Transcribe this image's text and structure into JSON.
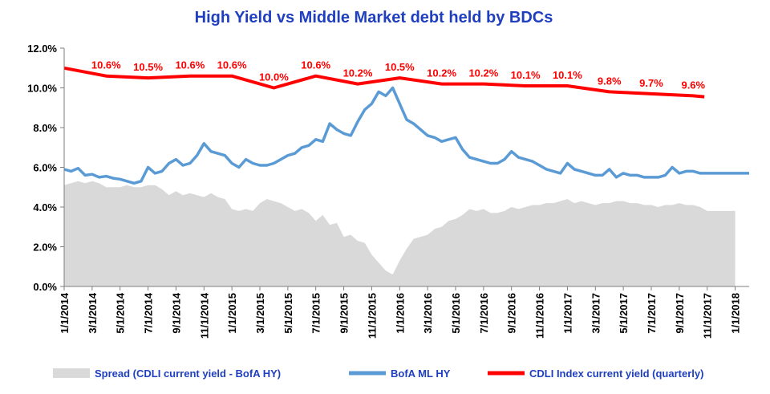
{
  "chart_data": {
    "type": "line",
    "title": "High Yield  vs  Middle Market debt held by BDCs",
    "xlabel": "",
    "ylabel": "",
    "ylim": [
      0,
      12
    ],
    "y_ticks": [
      "0.0%",
      "2.0%",
      "4.0%",
      "6.0%",
      "8.0%",
      "10.0%",
      "12.0%"
    ],
    "x_ticks": [
      "1/1/2014",
      "3/1/2014",
      "5/1/2014",
      "7/1/2014",
      "9/1/2014",
      "11/1/2014",
      "1/1/2015",
      "3/1/2015",
      "5/1/2015",
      "7/1/2015",
      "9/1/2015",
      "11/1/2015",
      "1/1/2016",
      "3/1/2016",
      "5/1/2016",
      "7/1/2016",
      "9/1/2016",
      "11/1/2016",
      "1/1/2017",
      "3/1/2017",
      "5/1/2017",
      "7/1/2017",
      "9/1/2017",
      "11/1/2017",
      "1/1/2018"
    ],
    "x_range_months": [
      0,
      49
    ],
    "grid": "none",
    "legend_position": "bottom",
    "colors": {
      "spread": "#d9d9d9",
      "hy": "#5b9bd5",
      "cdli": "#ff0000",
      "title": "#1f3fbf"
    },
    "series": [
      {
        "name": "Spread (CDLI current yield - BofA HY)",
        "type": "area",
        "x": [
          0,
          0.5,
          1,
          1.5,
          2,
          2.5,
          3,
          3.5,
          4,
          4.5,
          5,
          5.5,
          6,
          6.5,
          7,
          7.5,
          8,
          8.5,
          9,
          9.5,
          10,
          10.5,
          11,
          11.5,
          12,
          12.5,
          13,
          13.5,
          14,
          14.5,
          15,
          15.5,
          16,
          16.5,
          17,
          17.5,
          18,
          18.5,
          19,
          19.5,
          20,
          20.5,
          21,
          21.5,
          22,
          22.5,
          23,
          23.5,
          24,
          24.5,
          25,
          25.5,
          26,
          26.5,
          27,
          27.5,
          28,
          28.5,
          29,
          29.5,
          30,
          30.5,
          31,
          31.5,
          32,
          32.5,
          33,
          33.5,
          34,
          34.5,
          35,
          35.5,
          36,
          36.5,
          37,
          37.5,
          38,
          38.5,
          39,
          39.5,
          40,
          40.5,
          41,
          41.5,
          42,
          42.5,
          43,
          43.5,
          44,
          44.5,
          45,
          45.5,
          46,
          46.5,
          47,
          47.5,
          48
        ],
        "values": [
          5.1,
          5.2,
          5.3,
          5.2,
          5.3,
          5.2,
          5.0,
          5.0,
          5.0,
          5.1,
          5.0,
          5.0,
          5.1,
          5.1,
          4.9,
          4.6,
          4.8,
          4.6,
          4.7,
          4.6,
          4.5,
          4.7,
          4.5,
          4.4,
          3.9,
          3.8,
          3.9,
          3.8,
          4.2,
          4.4,
          4.3,
          4.2,
          4.0,
          3.8,
          3.9,
          3.7,
          3.3,
          3.6,
          3.1,
          3.2,
          2.5,
          2.6,
          2.3,
          2.2,
          1.6,
          1.2,
          0.8,
          0.6,
          1.3,
          1.9,
          2.4,
          2.5,
          2.6,
          2.9,
          3.0,
          3.3,
          3.4,
          3.6,
          3.9,
          3.8,
          3.9,
          3.7,
          3.7,
          3.8,
          4.0,
          3.9,
          4.0,
          4.1,
          4.1,
          4.2,
          4.2,
          4.3,
          4.4,
          4.2,
          4.3,
          4.2,
          4.1,
          4.2,
          4.2,
          4.3,
          4.3,
          4.2,
          4.2,
          4.1,
          4.1,
          4.0,
          4.1,
          4.1,
          4.2,
          4.1,
          4.1,
          4.0,
          3.8,
          3.8,
          3.8,
          3.8,
          3.8
        ]
      },
      {
        "name": "BofA ML HY",
        "x": [
          0,
          0.5,
          1,
          1.5,
          2,
          2.5,
          3,
          3.5,
          4,
          4.5,
          5,
          5.5,
          6,
          6.5,
          7,
          7.5,
          8,
          8.5,
          9,
          9.5,
          10,
          10.5,
          11,
          11.5,
          12,
          12.5,
          13,
          13.5,
          14,
          14.5,
          15,
          15.5,
          16,
          16.5,
          17,
          17.5,
          18,
          18.5,
          19,
          19.5,
          20,
          20.5,
          21,
          21.5,
          22,
          22.5,
          23,
          23.5,
          24,
          24.5,
          25,
          25.5,
          26,
          26.5,
          27,
          27.5,
          28,
          28.5,
          29,
          29.5,
          30,
          30.5,
          31,
          31.5,
          32,
          32.5,
          33,
          33.5,
          34,
          34.5,
          35,
          35.5,
          36,
          36.5,
          37,
          37.5,
          38,
          38.5,
          39,
          39.5,
          40,
          40.5,
          41,
          41.5,
          42,
          42.5,
          43,
          43.5,
          44,
          44.5,
          45,
          45.5,
          46,
          46.5,
          47,
          47.5,
          48,
          48.5,
          49
        ],
        "values": [
          5.9,
          5.8,
          5.95,
          5.6,
          5.65,
          5.5,
          5.55,
          5.45,
          5.4,
          5.3,
          5.2,
          5.3,
          6.0,
          5.7,
          5.8,
          6.2,
          6.4,
          6.1,
          6.2,
          6.6,
          7.2,
          6.8,
          6.7,
          6.6,
          6.2,
          6.0,
          6.4,
          6.2,
          6.1,
          6.1,
          6.2,
          6.4,
          6.6,
          6.7,
          7.0,
          7.1,
          7.4,
          7.3,
          8.2,
          7.9,
          7.7,
          7.6,
          8.3,
          8.9,
          9.2,
          9.8,
          9.6,
          10.0,
          9.2,
          8.4,
          8.2,
          7.9,
          7.6,
          7.5,
          7.3,
          7.4,
          7.5,
          6.9,
          6.5,
          6.4,
          6.3,
          6.2,
          6.2,
          6.4,
          6.8,
          6.5,
          6.4,
          6.3,
          6.1,
          5.9,
          5.8,
          5.7,
          6.2,
          5.9,
          5.8,
          5.7,
          5.6,
          5.6,
          5.9,
          5.5,
          5.7,
          5.6,
          5.6,
          5.5,
          5.5,
          5.5,
          5.6,
          6.0,
          5.7,
          5.8,
          5.8,
          5.7,
          5.7,
          5.7,
          5.7,
          5.7,
          5.7,
          5.7,
          5.7
        ]
      },
      {
        "name": "CDLI Index current yield (quarterly)",
        "x": [
          0,
          3,
          6,
          9,
          12,
          15,
          18,
          21,
          24,
          27,
          30,
          33,
          36,
          39,
          42,
          45,
          45.8
        ],
        "values": [
          11.0,
          10.6,
          10.5,
          10.6,
          10.6,
          10.0,
          10.6,
          10.2,
          10.5,
          10.2,
          10.2,
          10.1,
          10.1,
          9.8,
          9.7,
          9.6,
          9.55
        ],
        "labels": [
          "",
          "10.6%",
          "10.5%",
          "10.6%",
          "10.6%",
          "10.0%",
          "10.6%",
          "10.2%",
          "10.5%",
          "10.2%",
          "10.2%",
          "10.1%",
          "10.1%",
          "9.8%",
          "9.7%",
          "9.6%",
          ""
        ]
      }
    ]
  }
}
